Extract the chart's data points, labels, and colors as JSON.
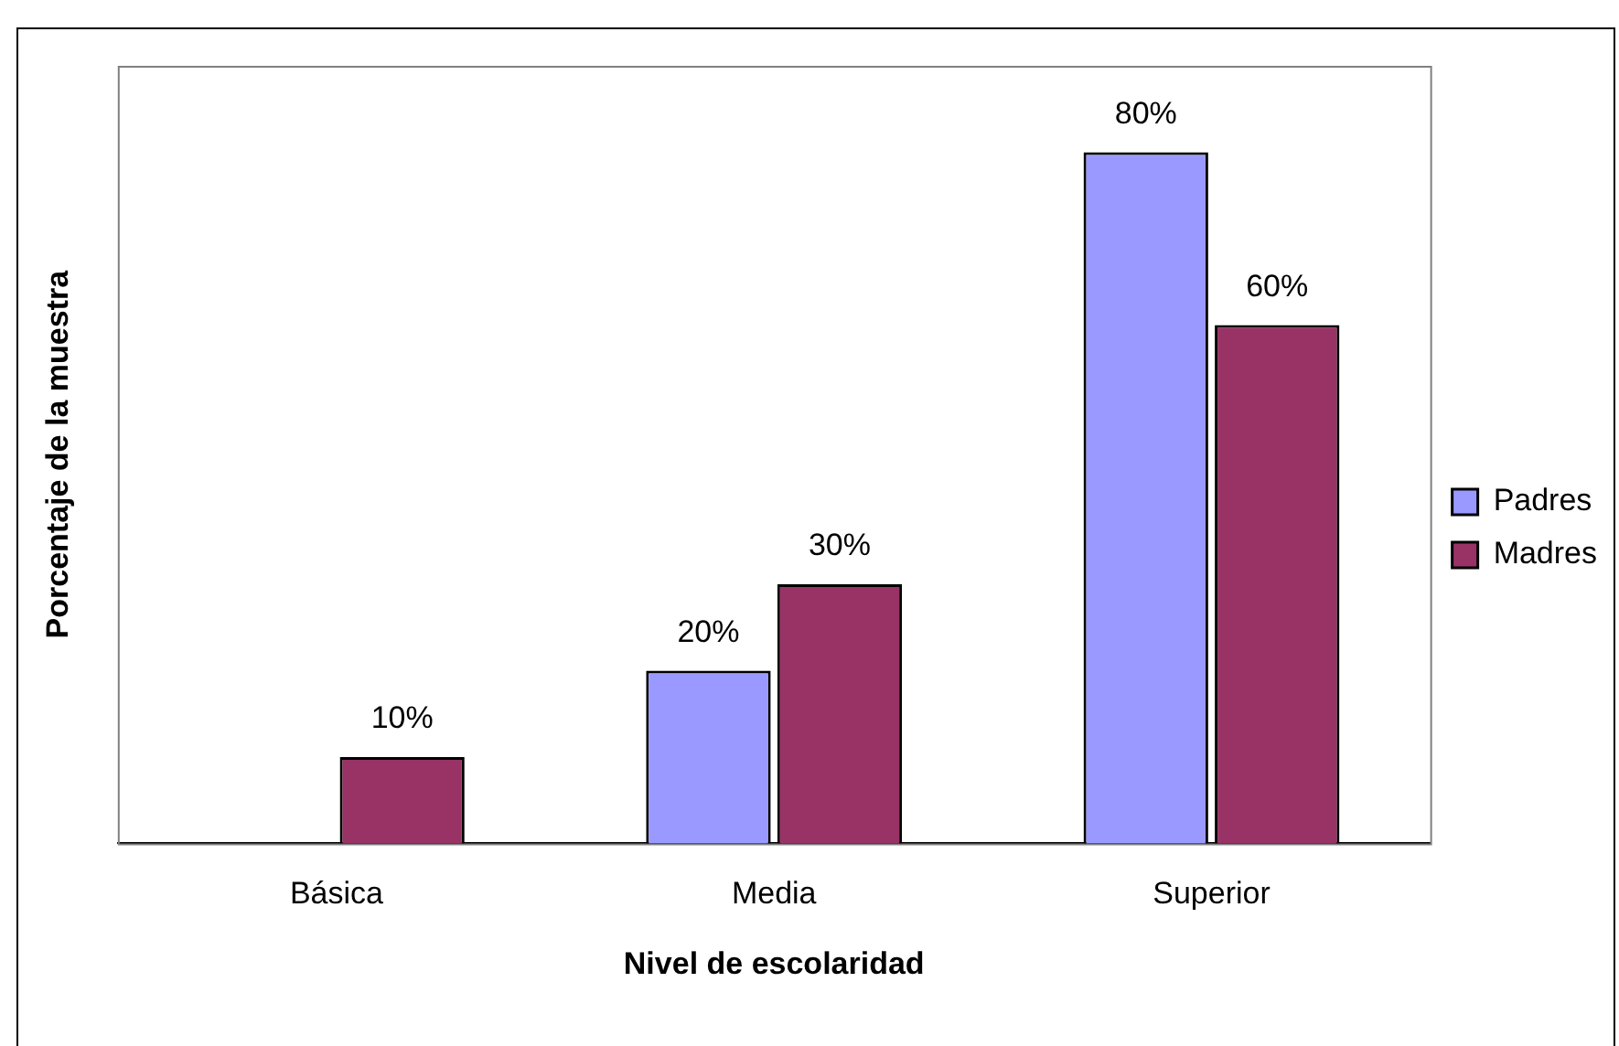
{
  "chart_data": {
    "type": "bar",
    "xlabel": "Nivel de escolaridad",
    "ylabel": "Porcentaje de la muestra",
    "categories": [
      "Básica",
      "Media",
      "Superior"
    ],
    "series": [
      {
        "name": "Padres",
        "color": "#9999ff",
        "values": [
          null,
          20,
          80
        ],
        "value_labels": [
          null,
          "20%",
          "80%"
        ]
      },
      {
        "name": "Madres",
        "color": "#993366",
        "values": [
          10,
          30,
          60
        ],
        "value_labels": [
          "10%",
          "30%",
          "60%"
        ]
      }
    ],
    "legend": "right",
    "grid": false
  }
}
